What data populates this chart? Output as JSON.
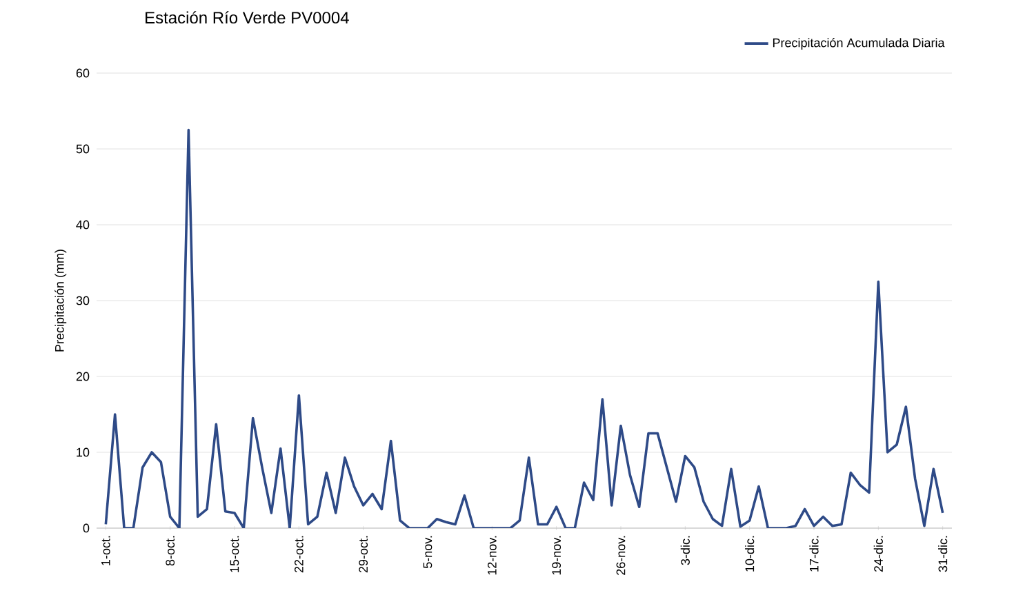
{
  "chart_data": {
    "type": "line",
    "title": "Estación  Río Verde  PV0004",
    "ylabel": "Precipitación (mm)",
    "categories": [
      "1-oct.",
      null,
      null,
      null,
      null,
      null,
      null,
      "8-oct.",
      null,
      null,
      null,
      null,
      null,
      null,
      "15-oct.",
      null,
      null,
      null,
      null,
      null,
      null,
      "22-oct.",
      null,
      null,
      null,
      null,
      null,
      null,
      "29-oct.",
      null,
      null,
      null,
      null,
      null,
      null,
      "5-nov.",
      null,
      null,
      null,
      null,
      null,
      null,
      "12-nov.",
      null,
      null,
      null,
      null,
      null,
      null,
      "19-nov.",
      null,
      null,
      null,
      null,
      null,
      null,
      "26-nov.",
      null,
      null,
      null,
      null,
      null,
      null,
      "3-dic.",
      null,
      null,
      null,
      null,
      null,
      null,
      "10-dic.",
      null,
      null,
      null,
      null,
      null,
      null,
      "17-dic.",
      null,
      null,
      null,
      null,
      null,
      null,
      "24-dic.",
      null,
      null,
      null,
      null,
      null,
      null,
      "31-dic."
    ],
    "series": [
      {
        "name": "Precipitación Acumulada Diaria",
        "color": "#2e4a87",
        "values": [
          0.5,
          15,
          0,
          0,
          8,
          10,
          8.7,
          1.5,
          0,
          52.5,
          1.5,
          2.5,
          13.7,
          2.2,
          2,
          0,
          14.5,
          8,
          2,
          10.5,
          0,
          17.5,
          0.5,
          1.5,
          7.3,
          2,
          9.3,
          5.5,
          3,
          4.5,
          2.5,
          11.5,
          1,
          0,
          0,
          0,
          1.2,
          0.8,
          0.5,
          4.3,
          0,
          0,
          0,
          0,
          0,
          1,
          9.3,
          0.5,
          0.5,
          2.8,
          0,
          0,
          6,
          3.7,
          17,
          3,
          13.5,
          7,
          2.8,
          12.5,
          12.5,
          8,
          3.5,
          9.5,
          8,
          3.5,
          1.2,
          0.3,
          7.8,
          0.2,
          1,
          5.5,
          0,
          0,
          0,
          0.3,
          2.5,
          0.3,
          1.5,
          0.3,
          0.5,
          7.3,
          5.7,
          4.7,
          32.5,
          10,
          11,
          16,
          6.5,
          0.3,
          7.8,
          2
        ]
      }
    ],
    "ylim": [
      0,
      60
    ],
    "yticks": [
      0,
      10,
      20,
      30,
      40,
      50,
      60
    ],
    "grid": "y",
    "legend": "top right",
    "marker": "none",
    "line_style": "solid"
  }
}
